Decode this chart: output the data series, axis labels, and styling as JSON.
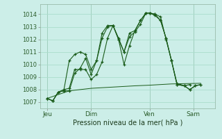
{
  "title": "Pression niveau de la mer( hPa )",
  "background_color": "#cceee8",
  "grid_color": "#aaddcc",
  "line_color": "#1a5c1a",
  "ylim": [
    1006.5,
    1014.8
  ],
  "yticks": [
    1007,
    1008,
    1009,
    1010,
    1011,
    1012,
    1013,
    1014
  ],
  "xlim": [
    0,
    192
  ],
  "day_labels": [
    "Jeu",
    "Dim",
    "Ven",
    "Sam"
  ],
  "day_positions": [
    8,
    56,
    120,
    168
  ],
  "day_vline_positions": [
    8,
    56,
    120,
    168
  ],
  "series": [
    {
      "x": [
        8,
        14,
        20,
        26,
        32,
        38,
        44,
        50,
        56,
        62,
        68,
        74,
        80,
        86,
        92,
        98,
        104,
        110,
        116,
        120,
        126,
        132,
        138,
        144,
        150,
        158,
        164,
        170,
        176
      ],
      "y": [
        1007.3,
        1007.1,
        1007.8,
        1007.9,
        1010.3,
        1010.8,
        1011.0,
        1010.8,
        1009.6,
        1010.3,
        1012.5,
        1013.1,
        1013.1,
        1012.1,
        1011.0,
        1012.2,
        1012.6,
        1013.2,
        1014.1,
        1014.1,
        1013.9,
        1013.5,
        1012.1,
        1010.3,
        1008.5,
        1008.3,
        1008.0,
        1008.3,
        1008.4
      ],
      "marker": true
    },
    {
      "x": [
        8,
        14,
        20,
        26,
        32,
        38,
        44,
        50,
        56,
        62,
        68,
        74,
        80,
        86,
        92,
        98,
        104,
        110,
        116,
        120,
        126,
        132,
        138,
        144,
        150,
        158,
        164,
        170,
        176
      ],
      "y": [
        1007.3,
        1007.1,
        1007.8,
        1008.0,
        1008.1,
        1009.6,
        1009.6,
        1009.6,
        1008.8,
        1009.2,
        1010.2,
        1012.1,
        1013.1,
        1012.0,
        1010.0,
        1011.5,
        1012.7,
        1013.5,
        1014.1,
        1014.1,
        1014.0,
        1013.8,
        1012.0,
        1010.3,
        1008.4,
        1008.3,
        1008.0,
        1008.3,
        1008.4
      ],
      "marker": true
    },
    {
      "x": [
        8,
        32,
        56,
        80,
        104,
        120,
        144,
        176
      ],
      "y": [
        1007.3,
        1007.9,
        1008.1,
        1008.2,
        1008.3,
        1008.35,
        1008.45,
        1008.5
      ],
      "marker": false
    },
    {
      "x": [
        8,
        14,
        20,
        26,
        32,
        38,
        44,
        50,
        56,
        62,
        68,
        74,
        80,
        86,
        92,
        98,
        104,
        110,
        116,
        120,
        126,
        132,
        138,
        144,
        150,
        158,
        164
      ],
      "y": [
        1007.3,
        1007.1,
        1007.8,
        1007.9,
        1007.9,
        1009.3,
        1009.7,
        1010.5,
        1009.2,
        1010.3,
        1012.1,
        1013.0,
        1013.1,
        1012.0,
        1011.0,
        1012.5,
        1012.7,
        1013.5,
        1014.1,
        1014.1,
        1014.0,
        1013.5,
        1012.1,
        1010.3,
        1008.4,
        1008.3,
        1008.4
      ],
      "marker": true
    }
  ]
}
